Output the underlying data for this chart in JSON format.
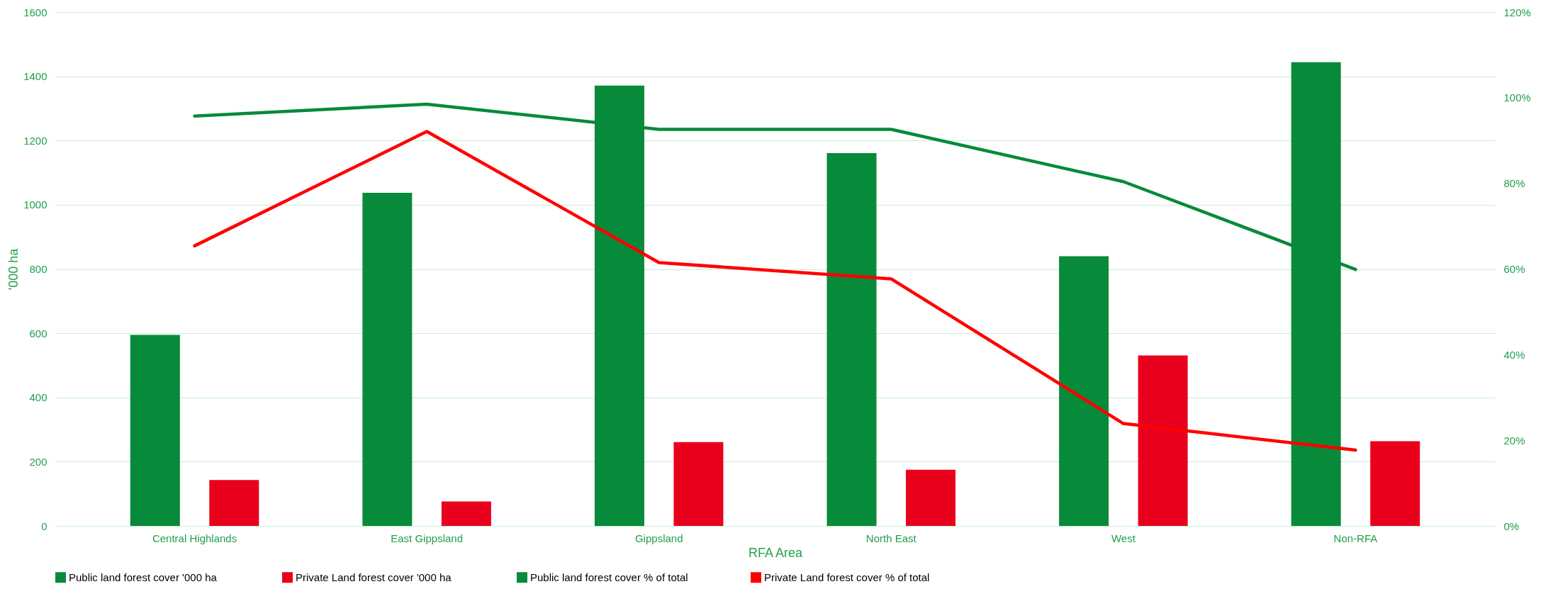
{
  "chart_data": {
    "type": "bar",
    "xlabel": "RFA Area",
    "ylabel": "'000 ha",
    "categories": [
      "Central Highlands",
      "East Gippsland",
      "Gippsland",
      "North East",
      "West",
      "Non-RFA"
    ],
    "series": [
      {
        "name": "Public land forest cover  '000 ha",
        "type": "bar",
        "color": "#078a3a",
        "values": [
          595,
          1037,
          1371,
          1161,
          840,
          1444
        ]
      },
      {
        "name": "Private Land forest cover  '000 ha",
        "type": "bar",
        "color": "#e8001c",
        "values": [
          143,
          76,
          261,
          175,
          531,
          264
        ]
      },
      {
        "name": "Public land forest cover % of total",
        "type": "line",
        "axis": "y2",
        "color": "#078a3a",
        "values": [
          95.7,
          98.5,
          92.6,
          92.6,
          80.4,
          59.9
        ]
      },
      {
        "name": "Private Land forest cover % of total",
        "type": "line",
        "axis": "y2",
        "color": "#ff0000",
        "values": [
          65.4,
          92.1,
          61.5,
          57.7,
          23.9,
          17.7
        ]
      }
    ],
    "ylim": [
      0,
      1600
    ],
    "yticks": [
      0,
      200,
      400,
      600,
      800,
      1000,
      1200,
      1400,
      1600
    ],
    "y2lim": [
      0,
      120
    ],
    "y2ticks": [
      {
        "value": 0,
        "label": "0%"
      },
      {
        "value": 20,
        "label": "20%"
      },
      {
        "value": 40,
        "label": "40%"
      },
      {
        "value": 60,
        "label": "60%"
      },
      {
        "value": 80,
        "label": "80%"
      },
      {
        "value": 100,
        "label": "100%"
      },
      {
        "value": 120,
        "label": "120%"
      }
    ],
    "grid": "y",
    "legend": "bottom",
    "marker": "none",
    "line_style": "solid"
  }
}
